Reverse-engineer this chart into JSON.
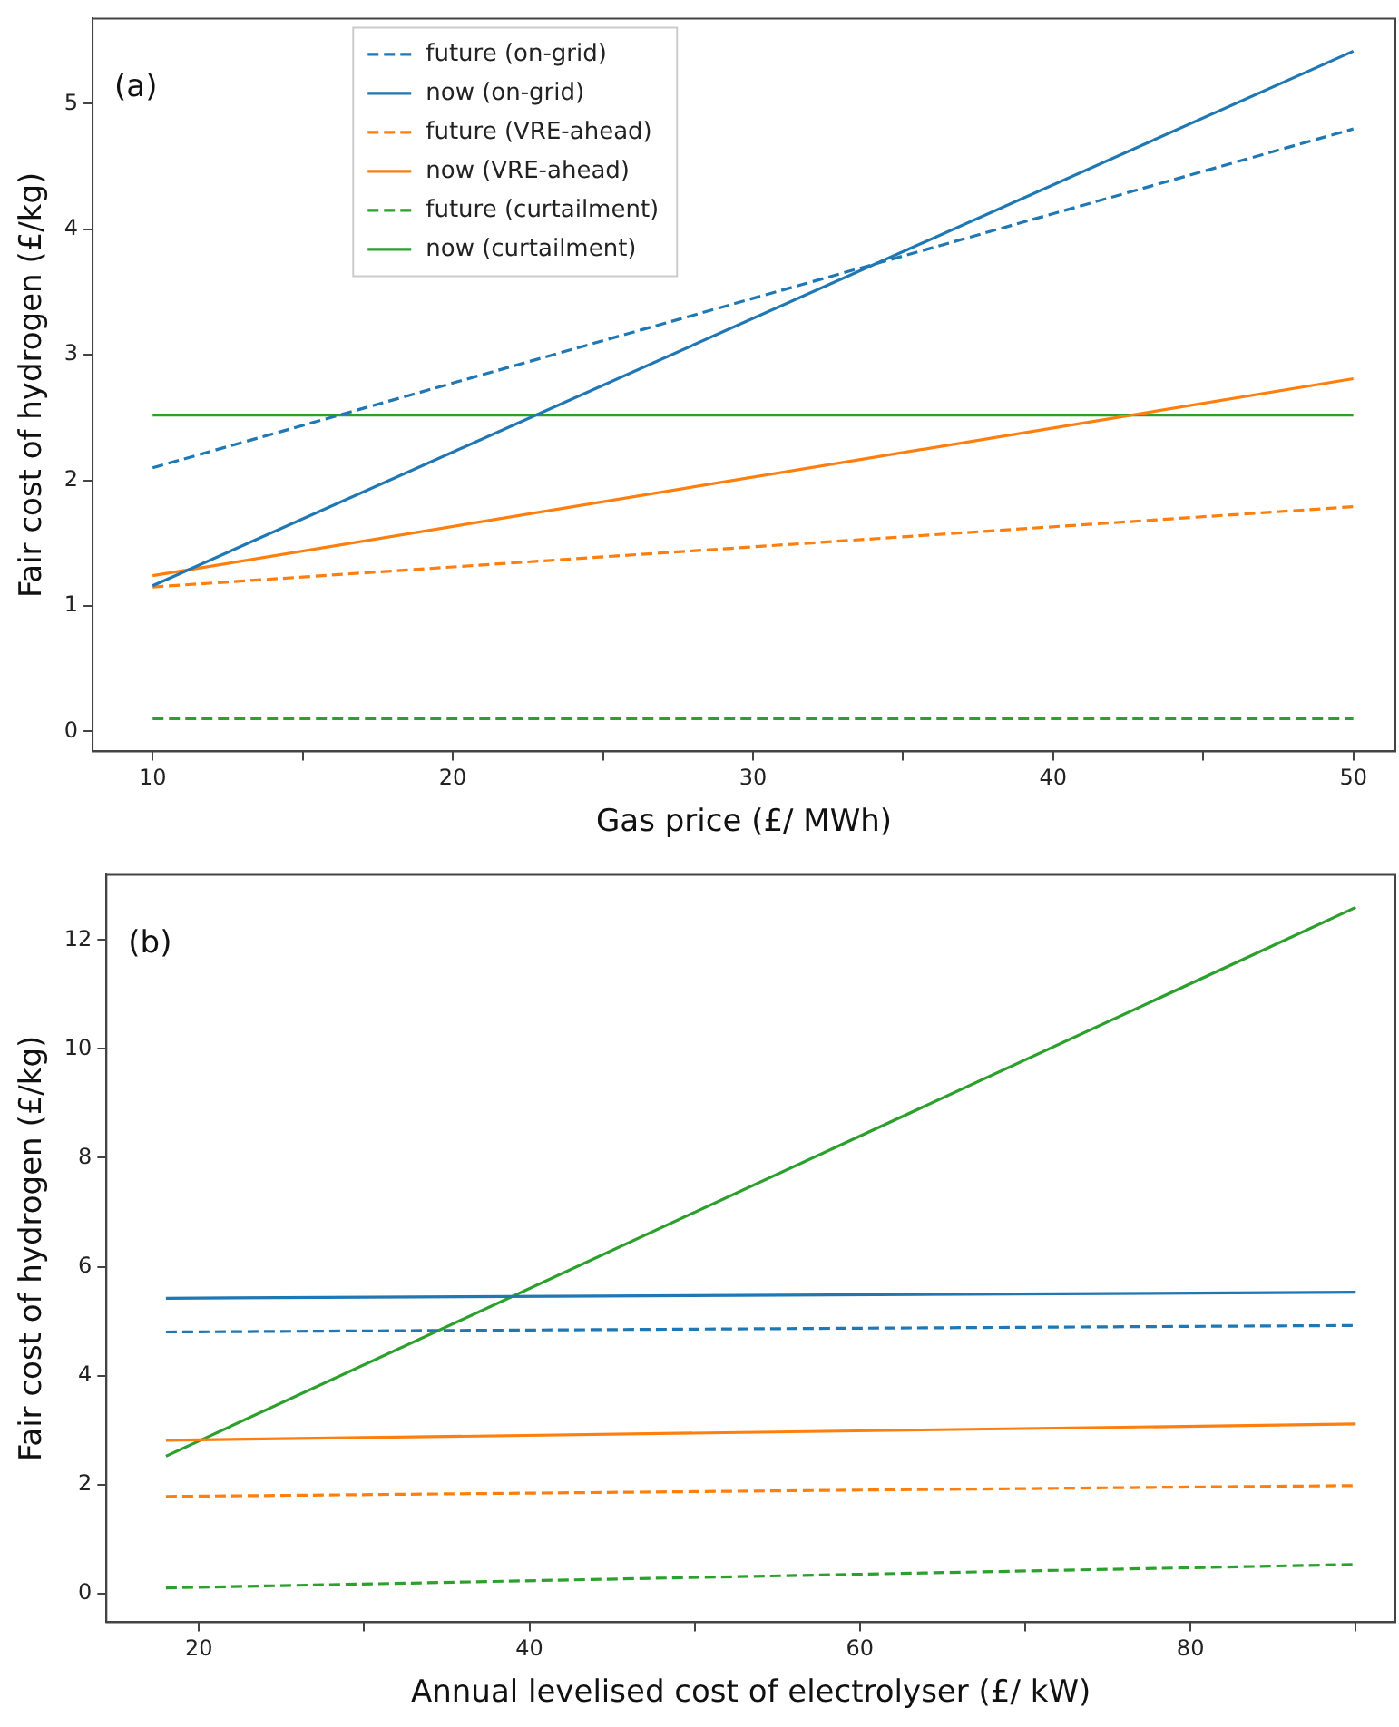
{
  "chart_data": [
    {
      "type": "line",
      "xlabel": "Gas price (£/ MWh)",
      "ylabel": "Fair cost of hydrogen (£/kg)",
      "annotations": [
        "(a)"
      ],
      "x": [
        10,
        50
      ],
      "xlim": [
        8,
        51.4
      ],
      "ylim": [
        -0.16,
        5.68
      ],
      "xticks": [
        10,
        {
          "value": 15,
          "label": null
        },
        20,
        {
          "value": 25,
          "label": null
        },
        30,
        {
          "value": 35,
          "label": null
        },
        40,
        {
          "value": 45,
          "label": null
        },
        50
      ],
      "yticks": [
        0,
        1,
        2,
        3,
        4,
        5
      ],
      "grid": false,
      "legend": "top left",
      "marker": "none",
      "series": [
        {
          "name": "future (on-grid)",
          "color": "#1f77b4",
          "line_style": "dashed",
          "values": [
            2.1,
            4.8
          ]
        },
        {
          "name": "now (on-grid)",
          "color": "#1f77b4",
          "line_style": "solid",
          "values": [
            1.16,
            5.42
          ]
        },
        {
          "name": "future (VRE-ahead)",
          "color": "#ff7f0e",
          "line_style": "dashed",
          "values": [
            1.15,
            1.79
          ]
        },
        {
          "name": "now (VRE-ahead)",
          "color": "#ff7f0e",
          "line_style": "solid",
          "values": [
            1.24,
            2.81
          ]
        },
        {
          "name": "future (curtailment)",
          "color": "#2ca02c",
          "line_style": "dashed",
          "values": [
            0.1,
            0.1
          ]
        },
        {
          "name": "now (curtailment)",
          "color": "#2ca02c",
          "line_style": "solid",
          "values": [
            2.52,
            2.52
          ]
        }
      ]
    },
    {
      "type": "line",
      "xlabel": "Annual levelised cost of electrolyser (£/ kW)",
      "ylabel": "Fair cost of hydrogen (£/kg)",
      "annotations": [
        "(b)"
      ],
      "x": [
        18,
        90
      ],
      "xlim": [
        14.4,
        92.4
      ],
      "ylim": [
        -0.53,
        13.2
      ],
      "xticks": [
        20,
        {
          "value": 30,
          "label": null
        },
        40,
        {
          "value": 50,
          "label": null
        },
        60,
        {
          "value": 70,
          "label": null
        },
        80,
        {
          "value": 90,
          "label": null
        }
      ],
      "yticks": [
        0,
        2,
        4,
        6,
        8,
        10,
        12
      ],
      "grid": false,
      "legend": false,
      "marker": "none",
      "series": [
        {
          "color": "#1f77b4",
          "line_style": "dashed",
          "values": [
            4.8,
            4.92
          ]
        },
        {
          "color": "#1f77b4",
          "line_style": "solid",
          "values": [
            5.42,
            5.53
          ]
        },
        {
          "color": "#ff7f0e",
          "line_style": "dashed",
          "values": [
            1.78,
            1.98
          ]
        },
        {
          "color": "#ff7f0e",
          "line_style": "solid",
          "values": [
            2.81,
            3.11
          ]
        },
        {
          "color": "#2ca02c",
          "line_style": "dashed",
          "values": [
            0.1,
            0.53
          ]
        },
        {
          "color": "#2ca02c",
          "line_style": "solid",
          "values": [
            2.52,
            12.6
          ]
        }
      ]
    }
  ]
}
